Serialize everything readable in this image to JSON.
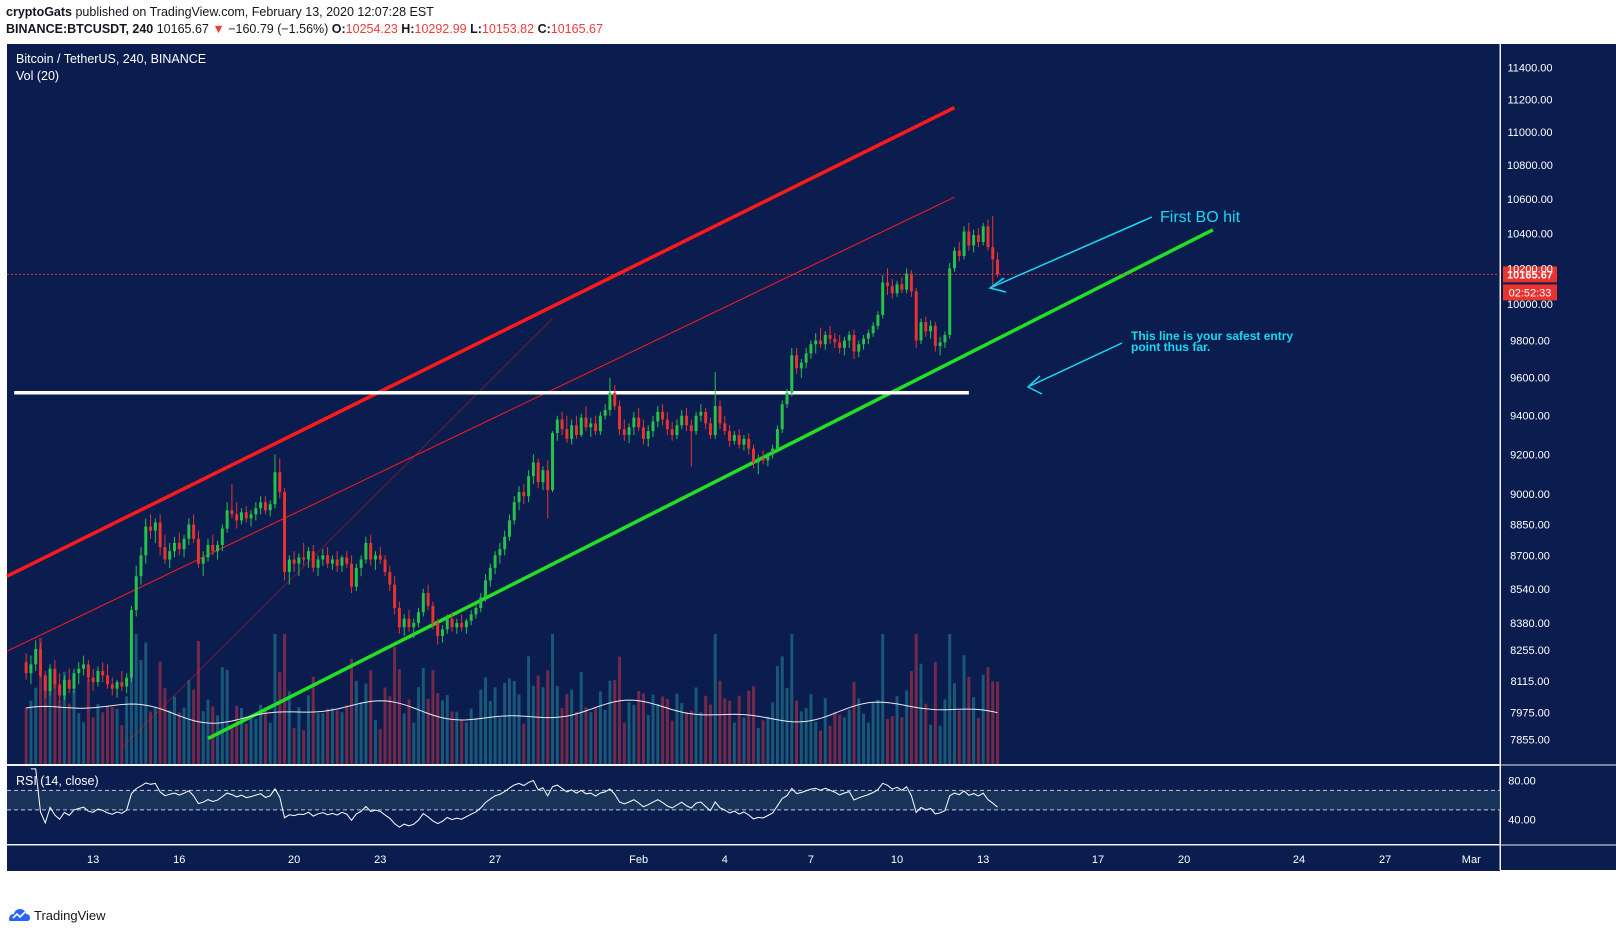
{
  "header": {
    "author": "cryptoGats",
    "published": "published on TradingView.com, February 13, 2020 12:07:28 EST",
    "symbol": "BINANCE:BTCUSDT, 240",
    "last": "10165.67",
    "change_arrow": "▼",
    "change": "−160.79 (−1.56%)",
    "o_label": "O:",
    "o_value": "10254.23",
    "h_label": "H:",
    "h_value": "10292.99",
    "l_label": "L:",
    "l_value": "10153.82",
    "c_label": "C:",
    "c_value": "10165.67"
  },
  "footer": {
    "brand": "TradingView",
    "logo_icon": "tradingview-logo-icon"
  },
  "colors": {
    "background": "#0b1d4f",
    "up": "#26c24a",
    "down": "#e8332f",
    "channel_upper": "#ff1a1a",
    "channel_lower": "#22e022",
    "support": "#ffffff",
    "annotation": "#19d9f2",
    "price_tag": "#e8332f"
  },
  "chart_data": {
    "type": "candlestick",
    "title": "Bitcoin / TetherUS, 240, BINANCE",
    "volume_label": "Vol (20)",
    "y_ticks": [
      "11400.00",
      "11200.00",
      "11000.00",
      "10800.00",
      "10600.00",
      "10400.00",
      "10200.00",
      "10000.00",
      "9800.00",
      "9600.00",
      "9400.00",
      "9200.00",
      "9000.00",
      "8850.00",
      "8700.00",
      "8540.00",
      "8380.00",
      "8255.00",
      "8115.00",
      "7975.00",
      "7855.00"
    ],
    "y_range": [
      7750,
      11550
    ],
    "y_scale": "log",
    "x_ticks": [
      "13",
      "16",
      "20",
      "23",
      "27",
      "Feb",
      "4",
      "7",
      "10",
      "13",
      "17",
      "20",
      "24",
      "27",
      "Mar"
    ],
    "x_range": [
      "2020-01-10",
      "2020-03-02"
    ],
    "last_price": "10165.67",
    "countdown": "02:52:33",
    "candles_4h": [
      [
        8200,
        8240,
        8120,
        8150
      ],
      [
        8150,
        8230,
        8100,
        8190
      ],
      [
        8190,
        8300,
        8160,
        8260
      ],
      [
        8260,
        8290,
        8130,
        8140
      ],
      [
        8140,
        8160,
        8040,
        8070
      ],
      [
        8070,
        8190,
        8050,
        8170
      ],
      [
        8170,
        8210,
        8080,
        8100
      ],
      [
        8100,
        8150,
        8020,
        8050
      ],
      [
        8050,
        8140,
        8030,
        8120
      ],
      [
        8120,
        8170,
        8060,
        8080
      ],
      [
        8080,
        8170,
        8060,
        8150
      ],
      [
        8150,
        8200,
        8100,
        8170
      ],
      [
        8170,
        8230,
        8140,
        8190
      ],
      [
        8190,
        8210,
        8110,
        8130
      ],
      [
        8130,
        8170,
        8070,
        8110
      ],
      [
        8110,
        8180,
        8090,
        8160
      ],
      [
        8160,
        8200,
        8110,
        8140
      ],
      [
        8140,
        8190,
        8080,
        8100
      ],
      [
        8100,
        8130,
        8050,
        8080
      ],
      [
        8080,
        8120,
        8040,
        8110
      ],
      [
        8110,
        8160,
        8070,
        8090
      ],
      [
        8090,
        8150,
        8060,
        8130
      ],
      [
        8130,
        8460,
        8110,
        8440
      ],
      [
        8440,
        8650,
        8410,
        8600
      ],
      [
        8600,
        8740,
        8560,
        8700
      ],
      [
        8700,
        8880,
        8660,
        8840
      ],
      [
        8840,
        8900,
        8780,
        8820
      ],
      [
        8820,
        8880,
        8760,
        8860
      ],
      [
        8860,
        8900,
        8700,
        8740
      ],
      [
        8740,
        8800,
        8660,
        8680
      ],
      [
        8680,
        8760,
        8640,
        8720
      ],
      [
        8720,
        8790,
        8690,
        8760
      ],
      [
        8760,
        8810,
        8700,
        8730
      ],
      [
        8730,
        8800,
        8690,
        8780
      ],
      [
        8780,
        8880,
        8750,
        8850
      ],
      [
        8850,
        8900,
        8760,
        8780
      ],
      [
        8780,
        8820,
        8640,
        8660
      ],
      [
        8660,
        8720,
        8600,
        8690
      ],
      [
        8690,
        8780,
        8670,
        8750
      ],
      [
        8750,
        8800,
        8700,
        8720
      ],
      [
        8720,
        8770,
        8680,
        8750
      ],
      [
        8750,
        8850,
        8720,
        8830
      ],
      [
        8830,
        8960,
        8810,
        8920
      ],
      [
        8920,
        9050,
        8880,
        8900
      ],
      [
        8900,
        8960,
        8830,
        8870
      ],
      [
        8870,
        8930,
        8850,
        8910
      ],
      [
        8910,
        8940,
        8860,
        8880
      ],
      [
        8880,
        8920,
        8840,
        8900
      ],
      [
        8900,
        8960,
        8870,
        8930
      ],
      [
        8930,
        8990,
        8900,
        8960
      ],
      [
        8960,
        8990,
        8900,
        8920
      ],
      [
        8920,
        8970,
        8890,
        8950
      ],
      [
        8950,
        9200,
        8930,
        9110
      ],
      [
        9110,
        9180,
        8980,
        9010
      ],
      [
        9010,
        9030,
        8580,
        8620
      ],
      [
        8620,
        8700,
        8560,
        8680
      ],
      [
        8680,
        8720,
        8620,
        8660
      ],
      [
        8660,
        8710,
        8600,
        8690
      ],
      [
        8690,
        8760,
        8650,
        8680
      ],
      [
        8680,
        8740,
        8640,
        8720
      ],
      [
        8720,
        8750,
        8620,
        8640
      ],
      [
        8640,
        8700,
        8600,
        8680
      ],
      [
        8680,
        8730,
        8650,
        8700
      ],
      [
        8700,
        8740,
        8640,
        8660
      ],
      [
        8660,
        8700,
        8630,
        8680
      ],
      [
        8680,
        8720,
        8620,
        8650
      ],
      [
        8650,
        8700,
        8620,
        8690
      ],
      [
        8690,
        8720,
        8640,
        8660
      ],
      [
        8660,
        8700,
        8520,
        8550
      ],
      [
        8550,
        8660,
        8530,
        8640
      ],
      [
        8640,
        8700,
        8600,
        8680
      ],
      [
        8680,
        8790,
        8660,
        8760
      ],
      [
        8760,
        8800,
        8650,
        8680
      ],
      [
        8680,
        8720,
        8630,
        8700
      ],
      [
        8700,
        8740,
        8660,
        8680
      ],
      [
        8680,
        8700,
        8600,
        8620
      ],
      [
        8620,
        8650,
        8530,
        8560
      ],
      [
        8560,
        8600,
        8420,
        8450
      ],
      [
        8450,
        8480,
        8330,
        8360
      ],
      [
        8360,
        8420,
        8320,
        8400
      ],
      [
        8400,
        8440,
        8340,
        8360
      ],
      [
        8360,
        8400,
        8310,
        8380
      ],
      [
        8380,
        8450,
        8360,
        8430
      ],
      [
        8430,
        8540,
        8410,
        8520
      ],
      [
        8520,
        8560,
        8440,
        8460
      ],
      [
        8460,
        8480,
        8350,
        8380
      ],
      [
        8380,
        8400,
        8280,
        8320
      ],
      [
        8320,
        8370,
        8290,
        8350
      ],
      [
        8350,
        8420,
        8330,
        8400
      ],
      [
        8400,
        8430,
        8340,
        8360
      ],
      [
        8360,
        8400,
        8330,
        8380
      ],
      [
        8380,
        8420,
        8340,
        8360
      ],
      [
        8360,
        8400,
        8330,
        8390
      ],
      [
        8390,
        8440,
        8370,
        8420
      ],
      [
        8420,
        8470,
        8400,
        8450
      ],
      [
        8450,
        8520,
        8430,
        8500
      ],
      [
        8500,
        8610,
        8480,
        8580
      ],
      [
        8580,
        8660,
        8550,
        8640
      ],
      [
        8640,
        8720,
        8610,
        8700
      ],
      [
        8700,
        8760,
        8660,
        8730
      ],
      [
        8730,
        8820,
        8700,
        8790
      ],
      [
        8790,
        8900,
        8770,
        8870
      ],
      [
        8870,
        8990,
        8850,
        8960
      ],
      [
        8960,
        9040,
        8920,
        9010
      ],
      [
        9010,
        9050,
        8950,
        8990
      ],
      [
        8990,
        9120,
        8960,
        9090
      ],
      [
        9090,
        9200,
        9050,
        9160
      ],
      [
        9160,
        9180,
        9030,
        9060
      ],
      [
        9060,
        9140,
        9020,
        9120
      ],
      [
        9120,
        9170,
        8880,
        9020
      ],
      [
        9020,
        9320,
        9010,
        9310
      ],
      [
        9310,
        9400,
        9270,
        9380
      ],
      [
        9380,
        9420,
        9300,
        9330
      ],
      [
        9330,
        9400,
        9260,
        9280
      ],
      [
        9280,
        9380,
        9250,
        9350
      ],
      [
        9350,
        9400,
        9280,
        9300
      ],
      [
        9300,
        9410,
        9290,
        9390
      ],
      [
        9390,
        9450,
        9320,
        9340
      ],
      [
        9340,
        9390,
        9290,
        9360
      ],
      [
        9360,
        9400,
        9300,
        9320
      ],
      [
        9320,
        9420,
        9300,
        9400
      ],
      [
        9400,
        9460,
        9380,
        9430
      ],
      [
        9430,
        9600,
        9400,
        9520
      ],
      [
        9520,
        9560,
        9430,
        9450
      ],
      [
        9450,
        9480,
        9300,
        9330
      ],
      [
        9330,
        9380,
        9270,
        9300
      ],
      [
        9300,
        9360,
        9260,
        9340
      ],
      [
        9340,
        9420,
        9300,
        9390
      ],
      [
        9390,
        9440,
        9320,
        9340
      ],
      [
        9340,
        9380,
        9250,
        9280
      ],
      [
        9280,
        9350,
        9240,
        9320
      ],
      [
        9320,
        9400,
        9290,
        9370
      ],
      [
        9370,
        9450,
        9340,
        9420
      ],
      [
        9420,
        9460,
        9350,
        9380
      ],
      [
        9380,
        9420,
        9300,
        9330
      ],
      [
        9330,
        9370,
        9270,
        9300
      ],
      [
        9300,
        9380,
        9280,
        9350
      ],
      [
        9350,
        9430,
        9330,
        9400
      ],
      [
        9400,
        9440,
        9320,
        9350
      ],
      [
        9350,
        9380,
        9140,
        9320
      ],
      [
        9320,
        9420,
        9300,
        9400
      ],
      [
        9400,
        9460,
        9370,
        9420
      ],
      [
        9420,
        9440,
        9330,
        9360
      ],
      [
        9360,
        9390,
        9280,
        9300
      ],
      [
        9300,
        9630,
        9280,
        9450
      ],
      [
        9450,
        9480,
        9330,
        9360
      ],
      [
        9360,
        9400,
        9300,
        9320
      ],
      [
        9320,
        9350,
        9240,
        9270
      ],
      [
        9270,
        9320,
        9250,
        9300
      ],
      [
        9300,
        9330,
        9230,
        9250
      ],
      [
        9250,
        9300,
        9220,
        9280
      ],
      [
        9280,
        9310,
        9200,
        9230
      ],
      [
        9230,
        9250,
        9130,
        9160
      ],
      [
        9160,
        9200,
        9100,
        9180
      ],
      [
        9180,
        9220,
        9150,
        9170
      ],
      [
        9170,
        9210,
        9140,
        9200
      ],
      [
        9200,
        9250,
        9180,
        9230
      ],
      [
        9230,
        9350,
        9210,
        9330
      ],
      [
        9330,
        9480,
        9310,
        9460
      ],
      [
        9460,
        9540,
        9440,
        9520
      ],
      [
        9520,
        9760,
        9500,
        9720
      ],
      [
        9720,
        9760,
        9620,
        9650
      ],
      [
        9650,
        9700,
        9600,
        9680
      ],
      [
        9680,
        9760,
        9650,
        9730
      ],
      [
        9730,
        9800,
        9700,
        9780
      ],
      [
        9780,
        9840,
        9730,
        9800
      ],
      [
        9800,
        9870,
        9760,
        9780
      ],
      [
        9780,
        9850,
        9750,
        9830
      ],
      [
        9830,
        9880,
        9780,
        9810
      ],
      [
        9810,
        9840,
        9760,
        9790
      ],
      [
        9790,
        9830,
        9730,
        9760
      ],
      [
        9760,
        9820,
        9720,
        9800
      ],
      [
        9800,
        9850,
        9760,
        9830
      ],
      [
        9830,
        9860,
        9700,
        9740
      ],
      [
        9740,
        9800,
        9710,
        9780
      ],
      [
        9780,
        9830,
        9750,
        9810
      ],
      [
        9810,
        9860,
        9780,
        9840
      ],
      [
        9840,
        9900,
        9820,
        9880
      ],
      [
        9880,
        9960,
        9860,
        9940
      ],
      [
        9940,
        10160,
        9920,
        10120
      ],
      [
        10120,
        10200,
        10050,
        10100
      ],
      [
        10100,
        10140,
        10030,
        10060
      ],
      [
        10060,
        10130,
        10040,
        10110
      ],
      [
        10110,
        10150,
        10060,
        10080
      ],
      [
        10080,
        10200,
        10060,
        10170
      ],
      [
        10170,
        10190,
        10040,
        10070
      ],
      [
        10070,
        10090,
        9760,
        9800
      ],
      [
        9800,
        9920,
        9780,
        9900
      ],
      [
        9900,
        9930,
        9820,
        9850
      ],
      [
        9850,
        9910,
        9810,
        9880
      ],
      [
        9880,
        9900,
        9740,
        9770
      ],
      [
        9770,
        9820,
        9720,
        9790
      ],
      [
        9790,
        9850,
        9760,
        9830
      ],
      [
        9830,
        10230,
        9810,
        10200
      ],
      [
        10200,
        10320,
        10180,
        10300
      ],
      [
        10300,
        10350,
        10240,
        10270
      ],
      [
        10270,
        10440,
        10250,
        10410
      ],
      [
        10410,
        10460,
        10300,
        10330
      ],
      [
        10330,
        10420,
        10290,
        10390
      ],
      [
        10390,
        10430,
        10320,
        10350
      ],
      [
        10350,
        10460,
        10330,
        10440
      ],
      [
        10440,
        10480,
        10300,
        10320
      ],
      [
        10320,
        10500,
        10080,
        10250
      ],
      [
        10250,
        10290,
        10150,
        10166
      ]
    ],
    "rsi_label": "RSI (14, close)",
    "rsi_ticks": [
      "80.00",
      "40.00"
    ],
    "rsi_bands": [
      70,
      50
    ],
    "annotations": {
      "first_bo": "First BO hit",
      "safest_entry_line1": "This line is your safest entry",
      "safest_entry_line2": "point thus far."
    }
  }
}
